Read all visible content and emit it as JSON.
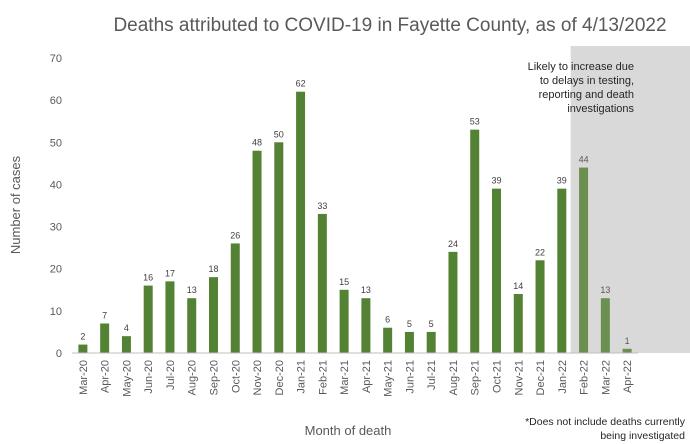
{
  "chart_data": {
    "type": "bar",
    "title": "Deaths attributed to COVID-19 in Fayette County, as of 4/13/2022",
    "xlabel": "Month of death",
    "ylabel": "Number of cases",
    "ylim": [
      0,
      70
    ],
    "yticks": [
      0,
      10,
      20,
      30,
      40,
      50,
      60,
      70
    ],
    "grid": false,
    "categories": [
      "Mar-20",
      "Apr-20",
      "May-20",
      "Jun-20",
      "Jul-20",
      "Aug-20",
      "Sep-20",
      "Oct-20",
      "Nov-20",
      "Dec-20",
      "Jan-21",
      "Feb-21",
      "Mar-21",
      "Apr-21",
      "May-21",
      "Jun-21",
      "Jul-21",
      "Aug-21",
      "Sep-21",
      "Oct-21",
      "Nov-21",
      "Dec-21",
      "Jan-22",
      "Feb-22",
      "Mar-22",
      "Apr-22"
    ],
    "values": [
      2,
      7,
      4,
      16,
      17,
      13,
      18,
      26,
      48,
      50,
      62,
      33,
      15,
      13,
      6,
      5,
      5,
      24,
      53,
      39,
      14,
      22,
      39,
      44,
      13,
      1
    ],
    "shaded_categories": [
      "Feb-22",
      "Mar-22",
      "Apr-22"
    ],
    "annotation": "Likely to increase due to delays in testing, reporting and death investigations",
    "annotation_lines": [
      "Likely to increase due",
      "to delays in testing,",
      "reporting and death",
      "investigations"
    ],
    "footnote_lines": [
      "*Does not include deaths currently",
      "being investigated"
    ],
    "colors": {
      "bar": "#548235",
      "bar_shaded": "#6b8f4e",
      "shade": "#d9d9d9",
      "axis": "#bfbfbf",
      "text": "#595959",
      "label": "#404040"
    }
  }
}
